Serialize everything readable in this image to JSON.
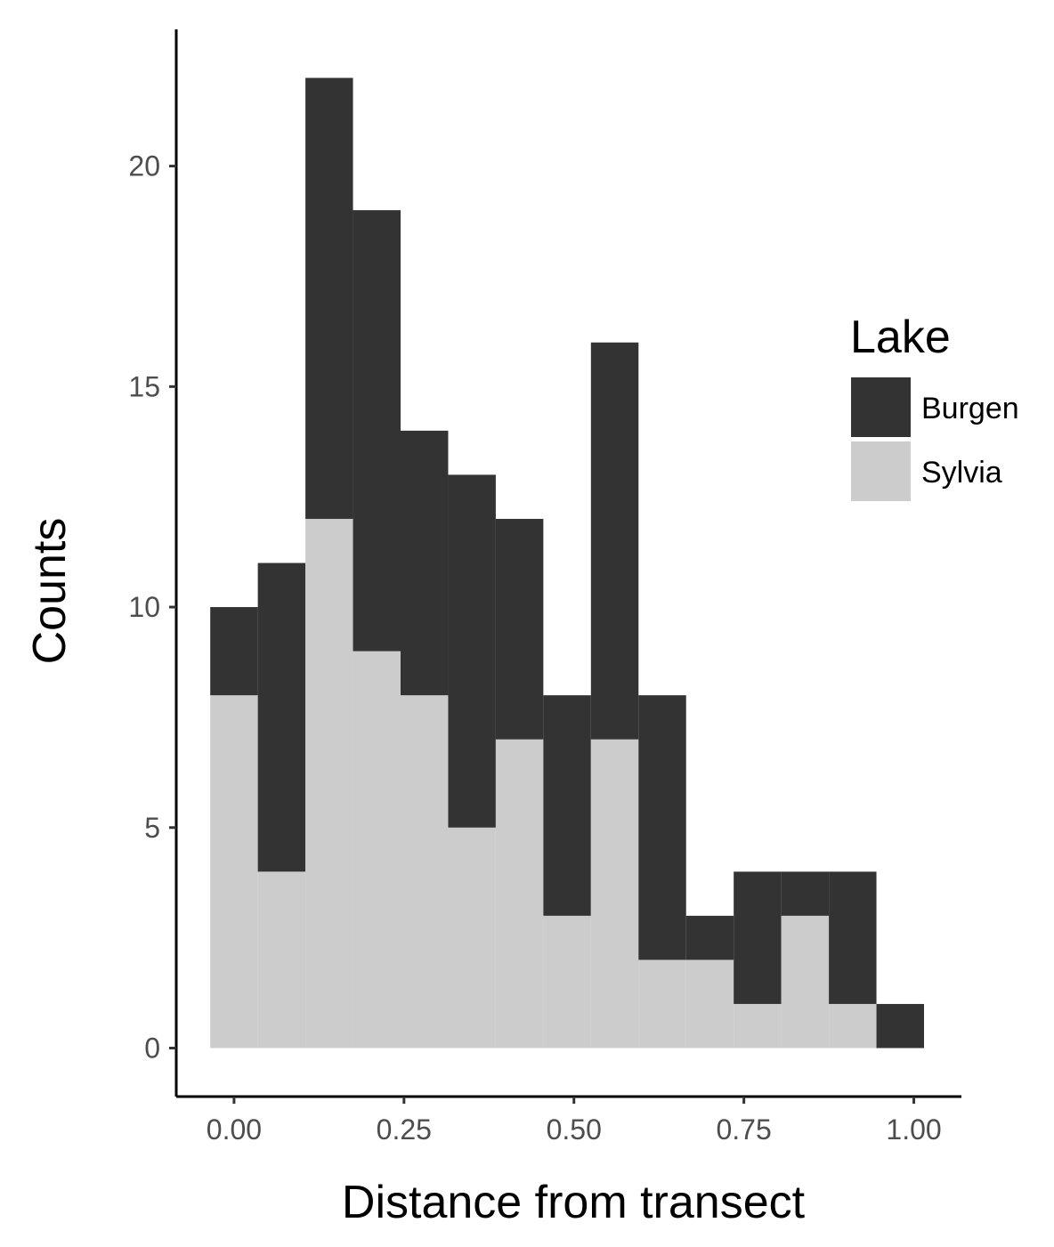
{
  "chart_data": {
    "type": "bar",
    "stacked": true,
    "xlabel": "Distance from transect",
    "ylabel": "Counts",
    "bin_width": 0.07,
    "bin_centers": [
      0.0,
      0.07,
      0.14,
      0.21,
      0.28,
      0.35,
      0.42,
      0.49,
      0.56,
      0.63,
      0.7,
      0.77,
      0.84,
      0.91,
      0.98
    ],
    "series": [
      {
        "name": "Sylvia",
        "color": "#cccccc",
        "values": [
          8,
          4,
          12,
          9,
          8,
          5,
          7,
          3,
          7,
          2,
          2,
          1,
          3,
          1,
          0
        ]
      },
      {
        "name": "Burgen",
        "color": "#333333",
        "values": [
          2,
          7,
          10,
          10,
          6,
          8,
          5,
          5,
          9,
          6,
          1,
          3,
          1,
          3,
          1
        ]
      }
    ],
    "xlim": [
      -0.085,
      1.07
    ],
    "ylim": [
      -1.1,
      23.1
    ],
    "x_ticks": [
      0,
      0.25,
      0.5,
      0.75,
      1.0
    ],
    "x_tick_labels": [
      "0.00",
      "0.25",
      "0.50",
      "0.75",
      "1.00"
    ],
    "y_ticks": [
      0,
      5,
      10,
      15,
      20
    ],
    "y_tick_labels": [
      "0",
      "5",
      "10",
      "15",
      "20"
    ],
    "grid": false,
    "legend": {
      "title": "Lake",
      "position": "right",
      "entries": [
        {
          "label": "Burgen",
          "color": "#333333"
        },
        {
          "label": "Sylvia",
          "color": "#cccccc"
        }
      ]
    }
  }
}
